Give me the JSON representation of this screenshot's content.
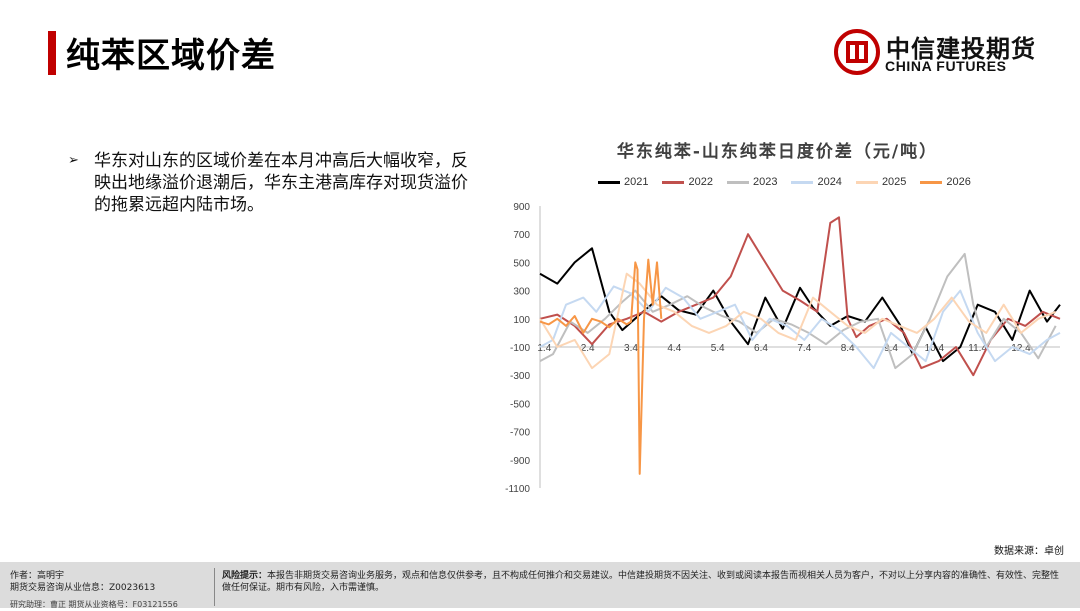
{
  "page": {
    "title": "纯苯区域价差",
    "logo_cn": "中信建投期货",
    "logo_en": "CHINA FUTURES",
    "bullet": "华东对山东的区域价差在本月冲高后大幅收窄，反映出地缘溢价退潮后，华东主港高库存对现货溢价的拖累远超内陆市场。",
    "source": "数据来源：卓创",
    "footer": {
      "author": "作者：高明宇",
      "license": "期货交易咨询从业信息：Z0023613",
      "assistant": "研究助理：曹正  期货从业资格号：F03121556",
      "risk_label": "风险提示：",
      "risk_text": "本报告非期货交易咨询业务服务，观点和信息仅供参考，且不构成任何推介和交易建议。中信建投期货不因关注、收到或阅读本报告而视相关人员为客户，不对以上分享内容的准确性、有效性、完整性做任何保证。期市有风险，入市需谨慎。"
    }
  },
  "colors": {
    "accent": "#c00000",
    "2021": "#000000",
    "2022": "#c0504d",
    "2023": "#bfbfbf",
    "2024": "#c5d9f1",
    "2025": "#fcd5b4",
    "2026": "#f79646"
  },
  "chart_data": {
    "type": "line",
    "title": "华东纯苯-山东纯苯日度价差（元/吨）",
    "legend_position": "top",
    "grid": false,
    "ylim": [
      -1100,
      900
    ],
    "yticks": [
      "900",
      "700",
      "500",
      "300",
      "100",
      "-100",
      "-300",
      "-500",
      "-700",
      "-900",
      "-1100"
    ],
    "ytick_values": [
      900,
      700,
      500,
      300,
      100,
      -100,
      -300,
      -500,
      -700,
      -900,
      -1100
    ],
    "xlim": [
      1,
      13
    ],
    "xticks": [
      "1.4",
      "2.4",
      "3.4",
      "4.4",
      "5.4",
      "6.4",
      "7.4",
      "8.4",
      "9.4",
      "10.4",
      "11.4",
      "12.4"
    ],
    "xtick_values": [
      1.1,
      2.1,
      3.1,
      4.1,
      5.1,
      6.1,
      7.1,
      8.1,
      9.1,
      10.1,
      11.1,
      12.1
    ],
    "series": [
      {
        "name": "2021",
        "x": [
          1.0,
          1.4,
          1.8,
          2.2,
          2.6,
          2.9,
          3.3,
          3.8,
          4.2,
          4.6,
          5.0,
          5.4,
          5.8,
          6.2,
          6.6,
          7.0,
          7.3,
          7.7,
          8.1,
          8.5,
          8.9,
          9.3,
          9.6,
          9.9,
          10.3,
          10.7,
          11.1,
          11.5,
          11.9,
          12.3,
          12.7,
          13.0
        ],
        "y": [
          420,
          350,
          500,
          600,
          150,
          20,
          130,
          260,
          160,
          130,
          300,
          80,
          -80,
          250,
          30,
          320,
          180,
          50,
          120,
          80,
          250,
          60,
          -150,
          40,
          -200,
          -100,
          200,
          150,
          -50,
          300,
          80,
          200
        ]
      },
      {
        "name": "2022",
        "x": [
          1.0,
          1.4,
          1.8,
          2.2,
          2.6,
          3.0,
          3.4,
          3.8,
          4.2,
          4.6,
          5.0,
          5.4,
          5.8,
          6.2,
          6.6,
          7.0,
          7.4,
          7.7,
          7.9,
          8.1,
          8.3,
          8.6,
          9.0,
          9.4,
          9.8,
          10.2,
          10.6,
          11.0,
          11.4,
          11.8,
          12.2,
          12.6,
          13.0
        ],
        "y": [
          100,
          130,
          50,
          -80,
          60,
          100,
          150,
          80,
          150,
          200,
          250,
          400,
          700,
          500,
          300,
          230,
          150,
          780,
          820,
          100,
          -30,
          50,
          100,
          0,
          -250,
          -200,
          -100,
          -300,
          -50,
          100,
          50,
          150,
          100
        ]
      },
      {
        "name": "2023",
        "x": [
          1.0,
          1.3,
          1.7,
          2.1,
          2.5,
          2.9,
          3.2,
          3.6,
          4.0,
          4.4,
          4.8,
          5.2,
          5.6,
          6.0,
          6.4,
          6.8,
          7.2,
          7.6,
          8.0,
          8.4,
          8.8,
          9.2,
          9.6,
          10.0,
          10.4,
          10.8,
          11.0,
          11.3,
          11.7,
          12.1,
          12.5,
          12.9
        ],
        "y": [
          -200,
          -150,
          80,
          0,
          100,
          220,
          300,
          150,
          200,
          260,
          180,
          120,
          80,
          0,
          100,
          60,
          0,
          -80,
          20,
          80,
          100,
          -250,
          -150,
          100,
          400,
          560,
          200,
          -100,
          100,
          0,
          -180,
          50
        ]
      },
      {
        "name": "2024",
        "x": [
          1.0,
          1.3,
          1.6,
          2.0,
          2.3,
          2.7,
          3.1,
          3.5,
          3.9,
          4.3,
          4.7,
          5.1,
          5.5,
          5.9,
          6.3,
          6.7,
          7.1,
          7.5,
          7.9,
          8.3,
          8.7,
          9.1,
          9.5,
          9.9,
          10.3,
          10.7,
          11.1,
          11.5,
          11.9,
          12.3,
          12.7,
          13.0
        ],
        "y": [
          -100,
          -50,
          200,
          250,
          150,
          330,
          280,
          150,
          320,
          250,
          100,
          150,
          200,
          -50,
          100,
          50,
          -50,
          100,
          20,
          -100,
          -250,
          0,
          -100,
          -200,
          150,
          300,
          0,
          -200,
          -100,
          -150,
          -50,
          0
        ]
      },
      {
        "name": "2025",
        "x": [
          1.0,
          1.4,
          1.8,
          2.2,
          2.6,
          3.0,
          3.3,
          3.7,
          4.1,
          4.5,
          4.9,
          5.3,
          5.7,
          6.1,
          6.5,
          6.9,
          7.3,
          7.7,
          8.1,
          8.5,
          8.9,
          9.3,
          9.7,
          10.1,
          10.5,
          10.9,
          11.3,
          11.7,
          12.1,
          12.5,
          12.9
        ],
        "y": [
          100,
          -100,
          -50,
          -250,
          -150,
          420,
          350,
          200,
          150,
          50,
          0,
          50,
          150,
          100,
          0,
          -50,
          250,
          150,
          50,
          0,
          100,
          50,
          0,
          100,
          250,
          80,
          0,
          200,
          0,
          100,
          150
        ]
      },
      {
        "name": "2026",
        "x": [
          1.0,
          1.2,
          1.4,
          1.6,
          1.8,
          2.0,
          2.2,
          2.4,
          2.6,
          2.8,
          3.0,
          3.1,
          3.2,
          3.25,
          3.3,
          3.4,
          3.5,
          3.6,
          3.7,
          3.8
        ],
        "y": [
          80,
          60,
          100,
          50,
          120,
          0,
          100,
          80,
          40,
          100,
          60,
          80,
          500,
          450,
          -1000,
          100,
          520,
          200,
          500,
          100
        ]
      }
    ]
  }
}
